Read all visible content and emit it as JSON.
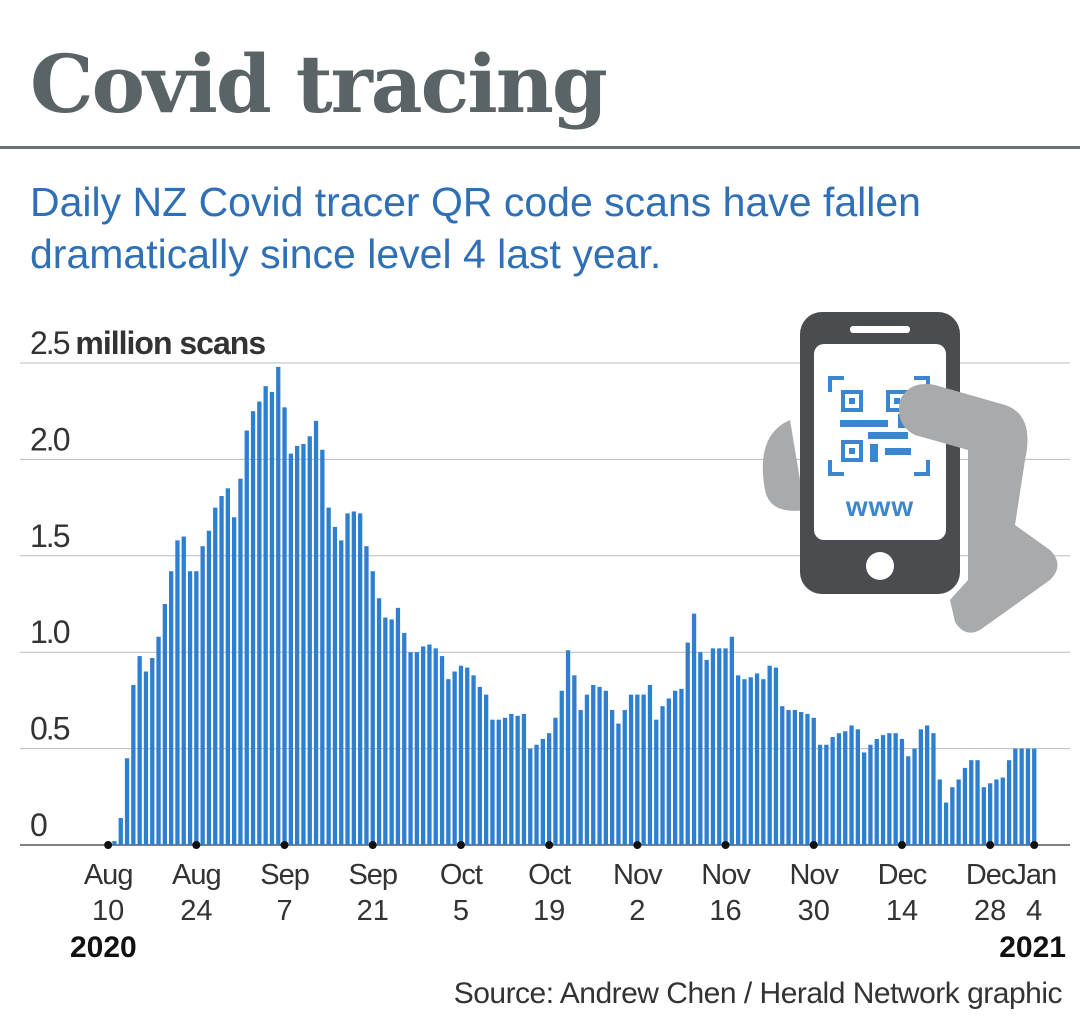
{
  "header": {
    "title": "Covid tracing",
    "subtitle": "Daily NZ Covid tracer QR code scans have fallen dramatically since level 4 last year."
  },
  "footer": {
    "source": "Source: Andrew Chen / Herald Network graphic"
  },
  "graphic": {
    "icon": "phone-qr-scan-icon",
    "phone_text": "www"
  },
  "colors": {
    "bar": "#2f7fd0",
    "title": "#5a6467",
    "subtitle": "#2f6fb6",
    "phone": "#4a4c4f",
    "hand": "#a8aaab",
    "qr": "#3c86cf"
  },
  "chart_data": {
    "type": "bar",
    "ylabel_value": "2.5",
    "ylabel_unit": "million scans",
    "ylim": [
      0,
      2.5
    ],
    "y_ticks": [
      "2.5",
      "2.0",
      "1.5",
      "1.0",
      "0.5",
      "0"
    ],
    "grid": true,
    "x_ticks": [
      {
        "month": "Aug",
        "day": "10"
      },
      {
        "month": "Aug",
        "day": "24"
      },
      {
        "month": "Sep",
        "day": "7"
      },
      {
        "month": "Sep",
        "day": "21"
      },
      {
        "month": "Oct",
        "day": "5"
      },
      {
        "month": "Oct",
        "day": "19"
      },
      {
        "month": "Nov",
        "day": "2"
      },
      {
        "month": "Nov",
        "day": "16"
      },
      {
        "month": "Nov",
        "day": "30"
      },
      {
        "month": "Dec",
        "day": "14"
      },
      {
        "month": "Dec",
        "day": "28"
      },
      {
        "month": "Jan",
        "day": "4"
      }
    ],
    "year_labels": {
      "start": "2020",
      "end": "2021"
    },
    "first_day": "2020-08-10",
    "values": [
      0.01,
      0.02,
      0.14,
      0.45,
      0.83,
      0.98,
      0.9,
      0.97,
      1.08,
      1.25,
      1.42,
      1.58,
      1.6,
      1.42,
      1.42,
      1.55,
      1.63,
      1.75,
      1.81,
      1.85,
      1.7,
      1.9,
      2.15,
      2.25,
      2.3,
      2.38,
      2.35,
      2.48,
      2.27,
      2.03,
      2.07,
      2.08,
      2.12,
      2.2,
      2.05,
      1.75,
      1.65,
      1.58,
      1.72,
      1.73,
      1.72,
      1.55,
      1.42,
      1.28,
      1.18,
      1.17,
      1.23,
      1.1,
      1.0,
      1.0,
      1.03,
      1.04,
      1.02,
      0.98,
      0.86,
      0.9,
      0.93,
      0.92,
      0.88,
      0.82,
      0.78,
      0.65,
      0.65,
      0.66,
      0.68,
      0.67,
      0.68,
      0.5,
      0.52,
      0.55,
      0.58,
      0.66,
      0.8,
      1.01,
      0.88,
      0.7,
      0.78,
      0.83,
      0.82,
      0.8,
      0.7,
      0.63,
      0.7,
      0.78,
      0.78,
      0.78,
      0.83,
      0.65,
      0.72,
      0.76,
      0.8,
      0.81,
      1.05,
      1.2,
      1.0,
      0.96,
      1.02,
      1.02,
      1.02,
      1.08,
      0.88,
      0.86,
      0.87,
      0.89,
      0.86,
      0.93,
      0.92,
      0.72,
      0.7,
      0.7,
      0.69,
      0.68,
      0.66,
      0.52,
      0.52,
      0.56,
      0.58,
      0.59,
      0.62,
      0.6,
      0.48,
      0.52,
      0.55,
      0.57,
      0.58,
      0.58,
      0.55,
      0.46,
      0.5,
      0.6,
      0.62,
      0.58,
      0.34,
      0.22,
      0.3,
      0.34,
      0.4,
      0.44,
      0.44,
      0.3,
      0.32,
      0.34,
      0.35,
      0.44,
      0.5,
      0.5,
      0.5,
      0.5
    ]
  }
}
